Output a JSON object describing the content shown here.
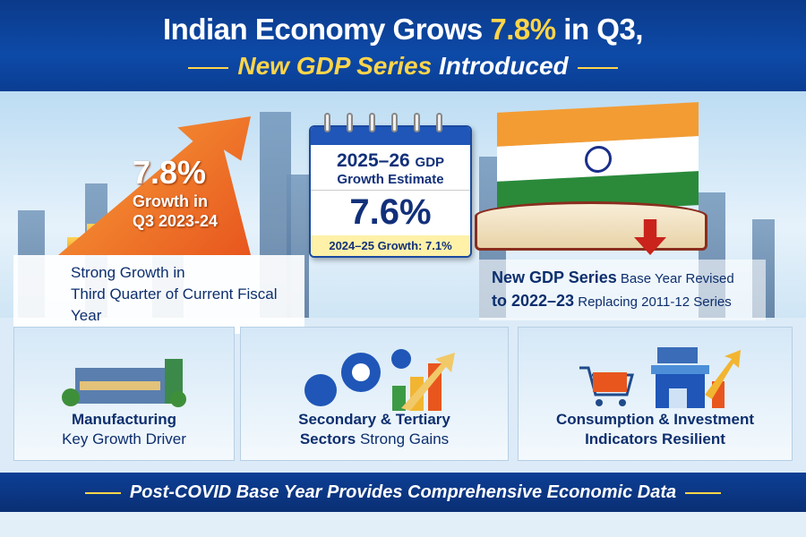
{
  "header": {
    "title_part1": "Indian Economy Grows ",
    "title_highlight": "7.8%",
    "title_part2": " in Q3,",
    "subtitle_highlight": "New GDP Series",
    "subtitle_rest": " Introduced"
  },
  "growth": {
    "value": "7.8%",
    "line1": "Growth in",
    "line2": "Q3 2023-24",
    "caption1": "Strong Growth in",
    "caption2": "Third Quarter of Current Fiscal Year"
  },
  "calendar": {
    "year": "2025–26",
    "gdp": "GDP",
    "label": "Growth Estimate",
    "value": "7.6%",
    "previous": "2024–25 Growth: 7.1%"
  },
  "series": {
    "line1_bold": "New GDP Series",
    "line1_rest": "Base Year Revised",
    "line2_bold": "to 2022–23",
    "line2_rest": "Replacing 2011-12 Series"
  },
  "cards": [
    {
      "bold": "Manufacturing",
      "rest": "Key Growth Driver"
    },
    {
      "bold": "Secondary & Tertiary",
      "bold2": "Sectors",
      "rest": "Strong Gains"
    },
    {
      "bold": "Consumption & Investment",
      "bold2": "Indicators Resilient",
      "rest": ""
    }
  ],
  "footer": {
    "text": "Post-COVID Base Year Provides Comprehensive Economic Data"
  },
  "colors": {
    "navy": "#0b3a8a",
    "yellow": "#ffd54a",
    "orange": "#e8561e",
    "saffron": "#f39c33",
    "green": "#2a8a3a"
  }
}
